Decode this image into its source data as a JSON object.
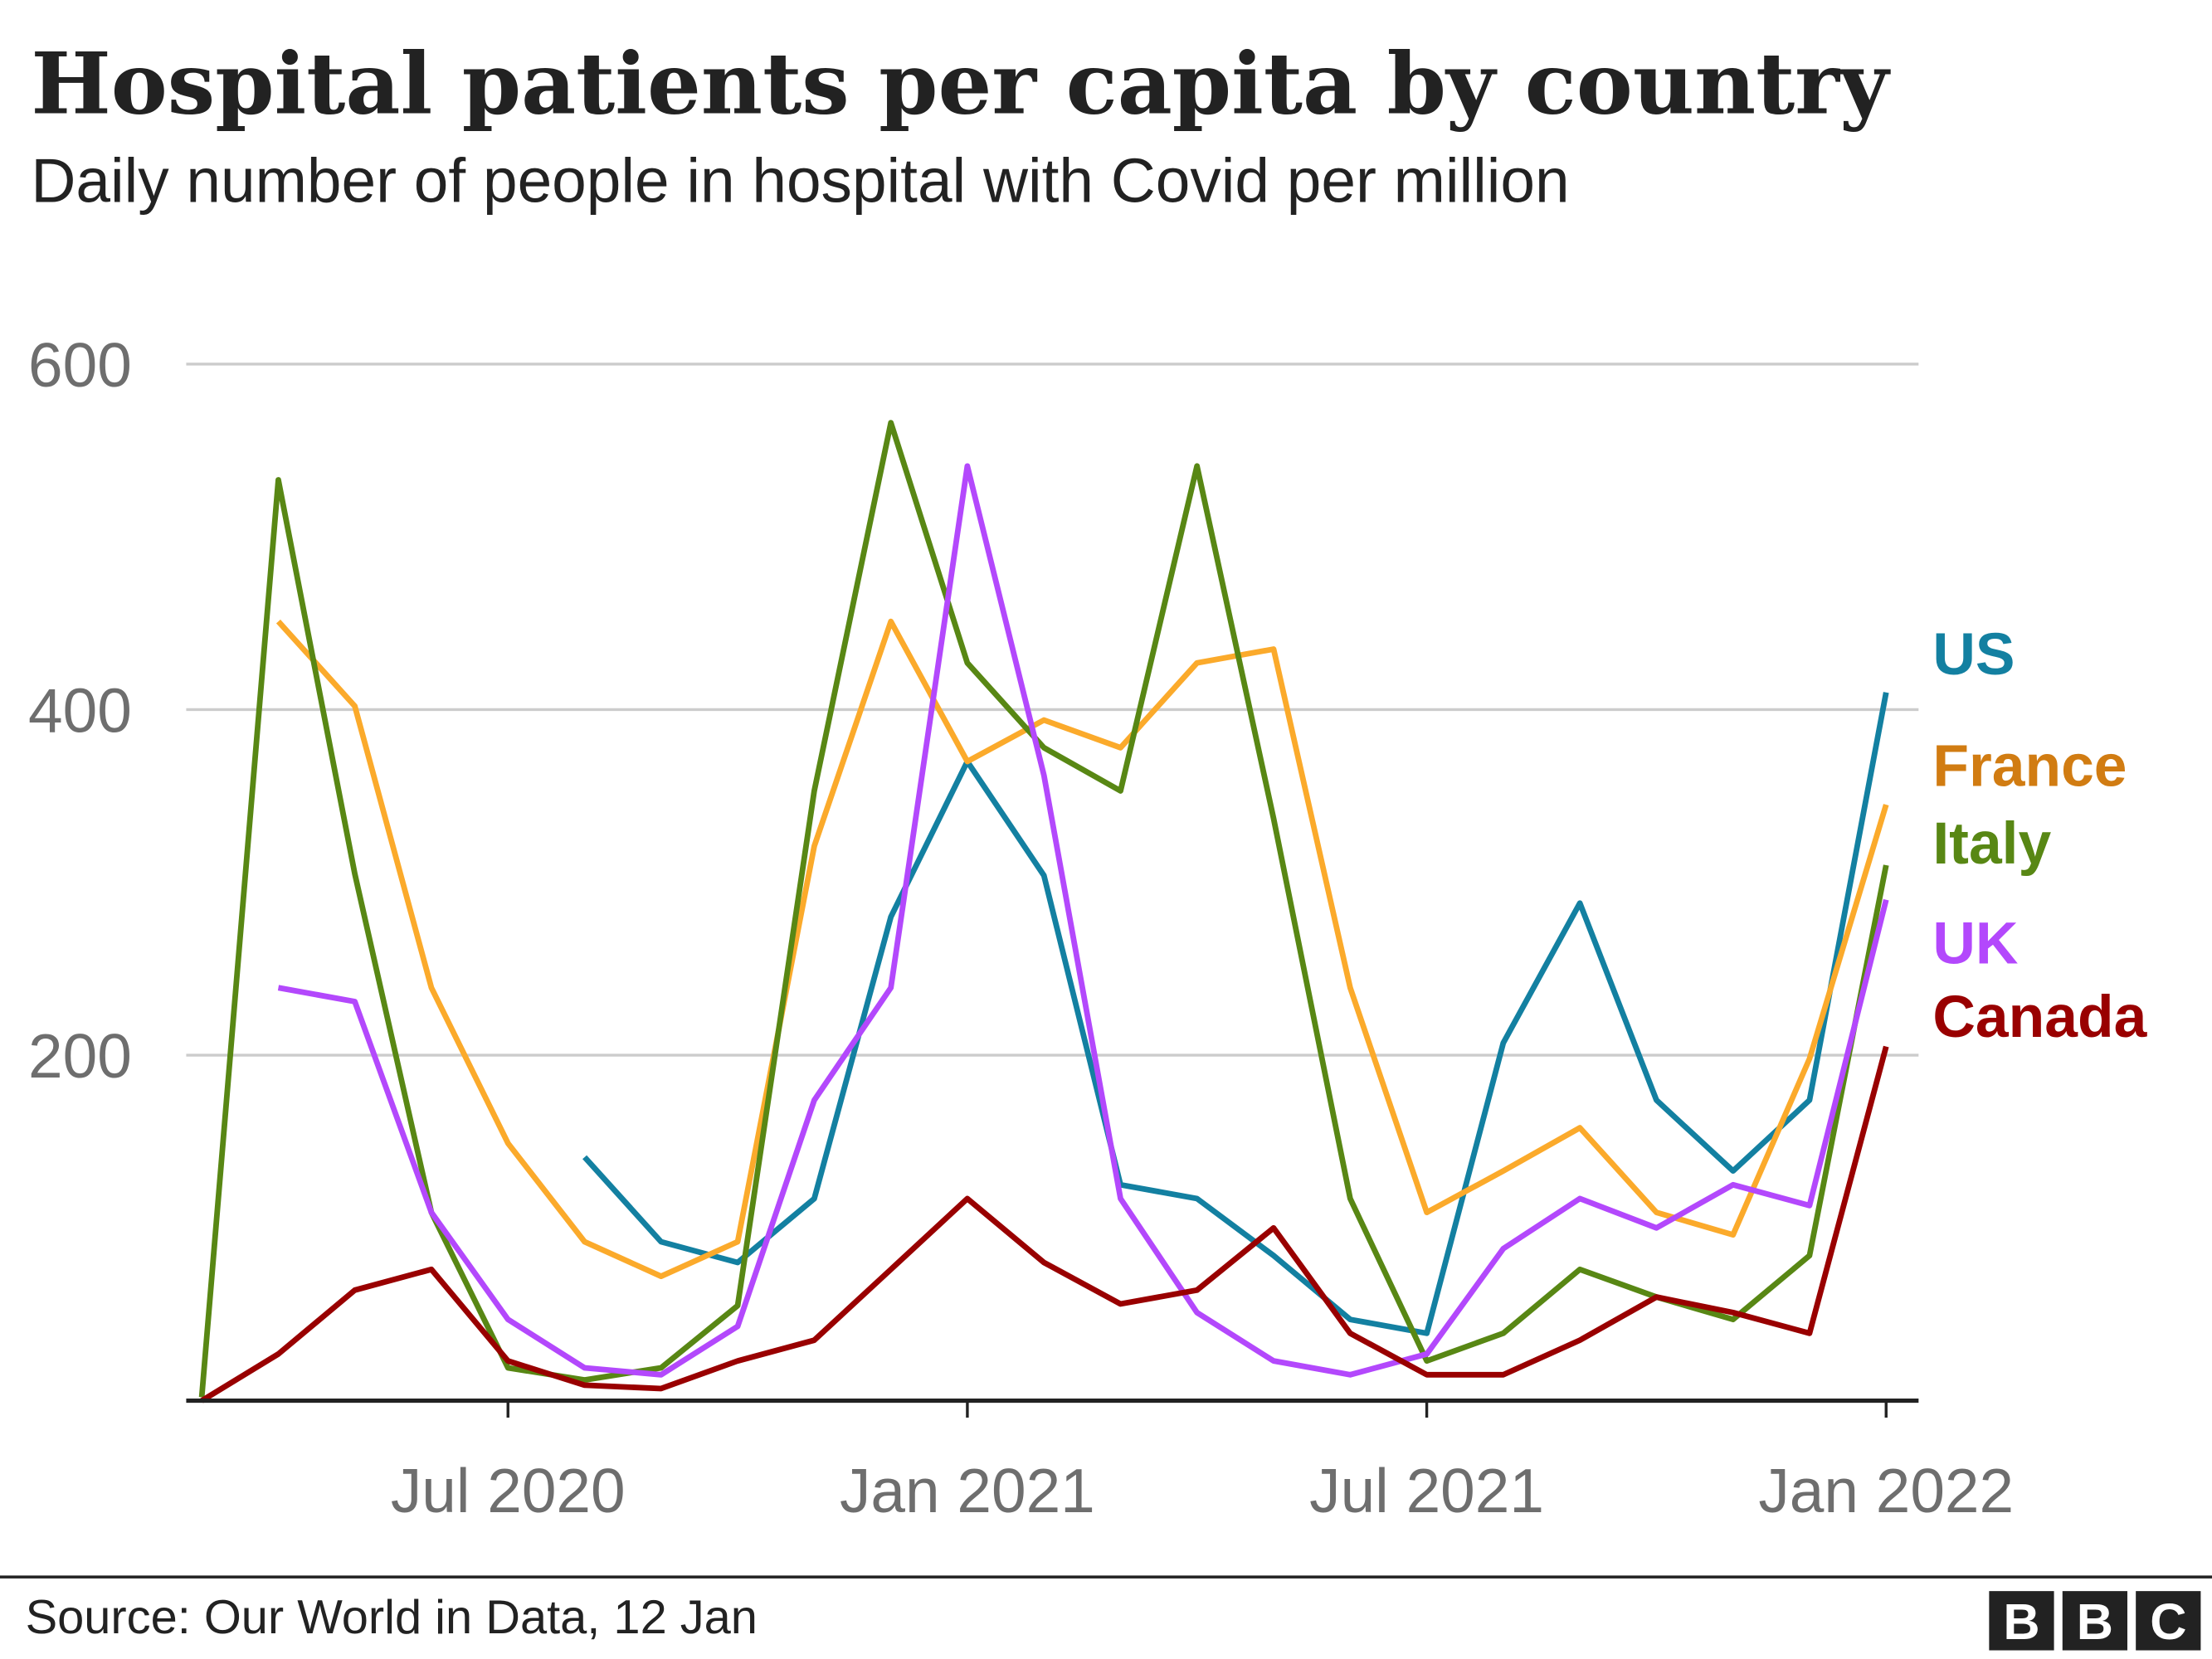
{
  "chart_data": {
    "type": "line",
    "title": "Hospital patients per capita by country",
    "subtitle": "Daily number of people in hospital with Covid per million",
    "source": "Source: Our World in Data, 12 Jan",
    "logo": [
      "B",
      "B",
      "C"
    ],
    "x": [
      "2020-03",
      "2020-04",
      "2020-05",
      "2020-06",
      "2020-07",
      "2020-08",
      "2020-09",
      "2020-10",
      "2020-11",
      "2020-12",
      "2021-01",
      "2021-02",
      "2021-03",
      "2021-04",
      "2021-05",
      "2021-06",
      "2021-07",
      "2021-08",
      "2021-09",
      "2021-10",
      "2021-11",
      "2021-12",
      "2022-01"
    ],
    "xlim": [
      "2020-03",
      "2022-01"
    ],
    "xticks": [
      {
        "value": "2020-07",
        "label": "Jul 2020"
      },
      {
        "value": "2021-01",
        "label": "Jan 2021"
      },
      {
        "value": "2021-07",
        "label": "Jul 2021"
      },
      {
        "value": "2022-01",
        "label": "Jan 2022"
      }
    ],
    "ylim": [
      0,
      600
    ],
    "yticks": [
      200,
      400,
      600
    ],
    "grid": true,
    "series": [
      {
        "name": "US",
        "color": "#1380a1",
        "label_color": "#1380a1",
        "values": [
          null,
          null,
          null,
          null,
          null,
          141,
          92,
          80,
          117,
          280,
          370,
          304,
          125,
          117,
          84,
          47,
          39,
          207,
          288,
          174,
          133,
          174,
          410
        ]
      },
      {
        "name": "France",
        "color": "#fbaa2b",
        "label_color": "#d17c12",
        "values": [
          null,
          451,
          402,
          239,
          149,
          92,
          72,
          92,
          321,
          451,
          370,
          394,
          378,
          427,
          435,
          239,
          109,
          133,
          158,
          109,
          96,
          198,
          345
        ]
      },
      {
        "name": "Italy",
        "color": "#588714",
        "label_color": "#588714",
        "values": [
          2,
          533,
          305,
          109,
          19,
          12,
          19,
          55,
          353,
          566,
          427,
          378,
          353,
          541,
          337,
          117,
          23,
          39,
          76,
          60,
          47,
          84,
          310
        ]
      },
      {
        "name": "UK",
        "color": "#b348fc",
        "label_color": "#b348fc",
        "values": [
          null,
          239,
          231,
          109,
          47,
          19,
          15,
          43,
          174,
          239,
          541,
          362,
          117,
          51,
          23,
          15,
          27,
          88,
          117,
          100,
          125,
          113,
          290
        ]
      },
      {
        "name": "Canada",
        "color": "#990000",
        "label_color": "#990000",
        "values": [
          0,
          27,
          64,
          76,
          23,
          9,
          7,
          23,
          35,
          76,
          117,
          80,
          56,
          64,
          100,
          39,
          15,
          15,
          35,
          60,
          51,
          39,
          205
        ]
      }
    ]
  }
}
